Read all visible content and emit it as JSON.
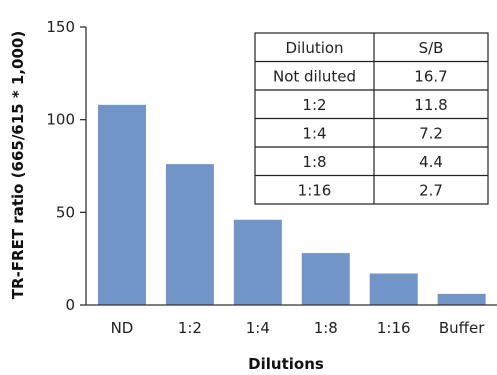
{
  "chart_data": {
    "type": "bar",
    "categories": [
      "ND",
      "1:2",
      "1:4",
      "1:8",
      "1:16",
      "Buffer"
    ],
    "values": [
      108,
      76,
      46,
      28,
      17,
      6
    ],
    "ylim": [
      0,
      150
    ],
    "yticks": [
      0,
      50,
      100,
      150
    ],
    "ylabel": "TR-FRET ratio (665/615 * 1,000)",
    "xlabel": "Dilutions",
    "bar_color": "#7095c6",
    "grid": false
  },
  "table": {
    "headers": [
      "Dilution",
      "S/B"
    ],
    "rows": [
      [
        "Not diluted",
        "16.7"
      ],
      [
        "1:2",
        "11.8"
      ],
      [
        "1:4",
        "7.2"
      ],
      [
        "1:8",
        "4.4"
      ],
      [
        "1:16",
        "2.7"
      ]
    ]
  }
}
